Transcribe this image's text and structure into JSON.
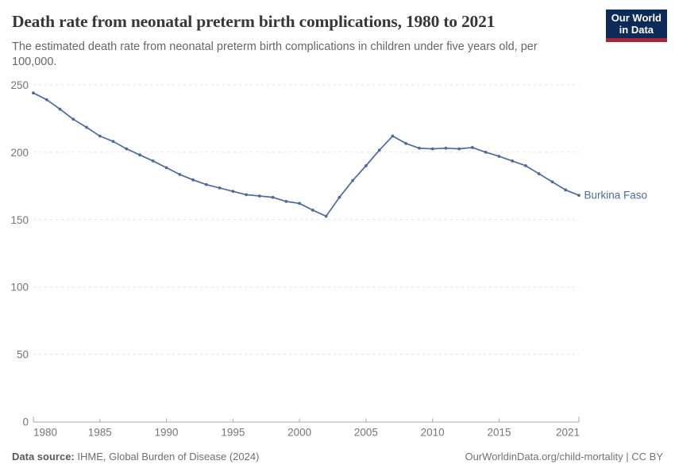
{
  "header": {
    "title": "Death rate from neonatal preterm birth complications, 1980 to 2021",
    "subtitle": "The estimated death rate from neonatal preterm birth complications in children under five years old, per 100,000.",
    "logo": {
      "line1": "Our World",
      "line2": "in Data"
    }
  },
  "footer": {
    "datasource_label": "Data source:",
    "datasource_value": " IHME, Global Burden of Disease (2024)",
    "rights": "OurWorldinData.org/child-mortality | CC BY"
  },
  "colors": {
    "line": "#4C6A9C",
    "grid": "#e0e0e0",
    "axis": "#a8a8a8",
    "axis_text": "#757575",
    "logo_bg": "#0C2B56",
    "logo_red": "#A52639"
  },
  "chart_data": {
    "type": "line",
    "title": "Death rate from neonatal preterm birth complications, 1980 to 2021",
    "subtitle": "The estimated death rate from neonatal preterm birth complications in children under five years old, per 100,000.",
    "xlabel": "",
    "ylabel": "",
    "xlim": [
      1980,
      2021
    ],
    "ylim": [
      0,
      250
    ],
    "yticks": [
      0,
      50,
      100,
      150,
      200,
      250
    ],
    "xticks": [
      1980,
      1985,
      1990,
      1995,
      2000,
      2005,
      2010,
      2015,
      2021
    ],
    "grid": "horizontal-dashed",
    "legend_position": "end-of-line-label",
    "series": [
      {
        "name": "Burkina Faso",
        "color": "#4C6A9C",
        "x": [
          1980,
          1981,
          1982,
          1983,
          1984,
          1985,
          1986,
          1987,
          1988,
          1989,
          1990,
          1991,
          1992,
          1993,
          1994,
          1995,
          1996,
          1997,
          1998,
          1999,
          2000,
          2001,
          2002,
          2003,
          2004,
          2005,
          2006,
          2007,
          2008,
          2009,
          2010,
          2011,
          2012,
          2013,
          2014,
          2015,
          2016,
          2017,
          2018,
          2019,
          2020,
          2021
        ],
        "values": [
          244,
          239,
          232,
          224.5,
          218.5,
          212,
          208,
          202.5,
          198,
          193.5,
          188.5,
          183.5,
          179.5,
          176,
          173.5,
          171,
          168.5,
          167.5,
          166.5,
          163.5,
          162,
          157,
          152.5,
          166.5,
          179,
          190,
          201.5,
          212,
          206.5,
          203,
          202.5,
          203,
          202.5,
          203.5,
          200,
          197,
          193.5,
          190,
          184,
          178,
          172,
          168
        ]
      }
    ]
  }
}
